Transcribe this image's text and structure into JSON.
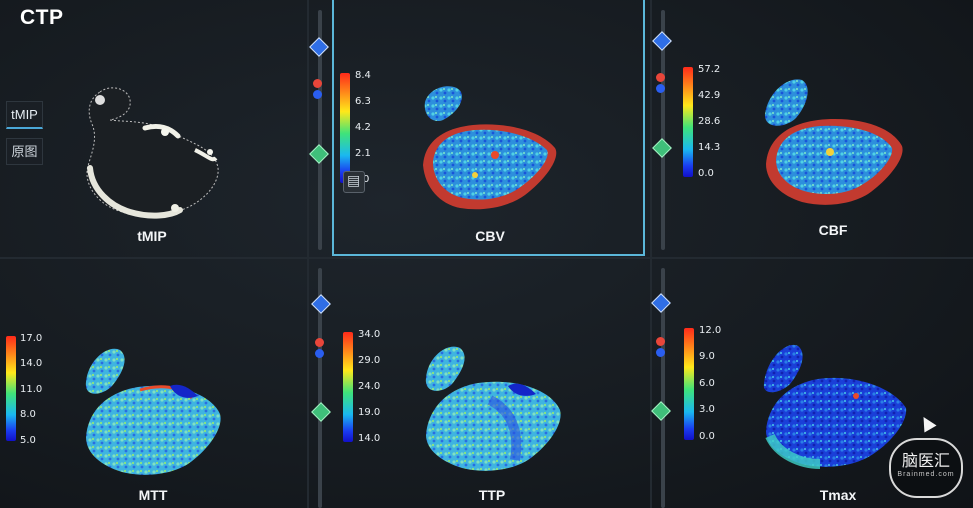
{
  "app": {
    "title": "CTP"
  },
  "sidebar": {
    "tabs": [
      {
        "label": "tMIP",
        "active": true
      },
      {
        "label": "原图",
        "active": false
      }
    ]
  },
  "panels": [
    {
      "id": "tmip",
      "label": "tMIP"
    },
    {
      "id": "cbv",
      "label": "CBV",
      "selected": true,
      "scale": [
        "8.4",
        "6.3",
        "4.2",
        "2.1",
        "0"
      ]
    },
    {
      "id": "cbf",
      "label": "CBF",
      "scale": [
        "57.2",
        "42.9",
        "28.6",
        "14.3",
        "0.0"
      ]
    },
    {
      "id": "mtt",
      "label": "MTT",
      "scale": [
        "17.0",
        "14.0",
        "11.0",
        "8.0",
        "5.0"
      ]
    },
    {
      "id": "ttp",
      "label": "TTP",
      "scale": [
        "34.0",
        "29.0",
        "24.0",
        "19.0",
        "14.0"
      ]
    },
    {
      "id": "tmax",
      "label": "Tmax",
      "scale": [
        "12.0",
        "9.0",
        "6.0",
        "3.0",
        "0.0"
      ]
    }
  ],
  "watermark": {
    "main": "脑医汇",
    "sub": "Brainmed.com"
  },
  "colors": {
    "accent": "#5bb7d9",
    "diamond_blue": "#2f6ee6",
    "diamond_green": "#3fbf7a"
  }
}
